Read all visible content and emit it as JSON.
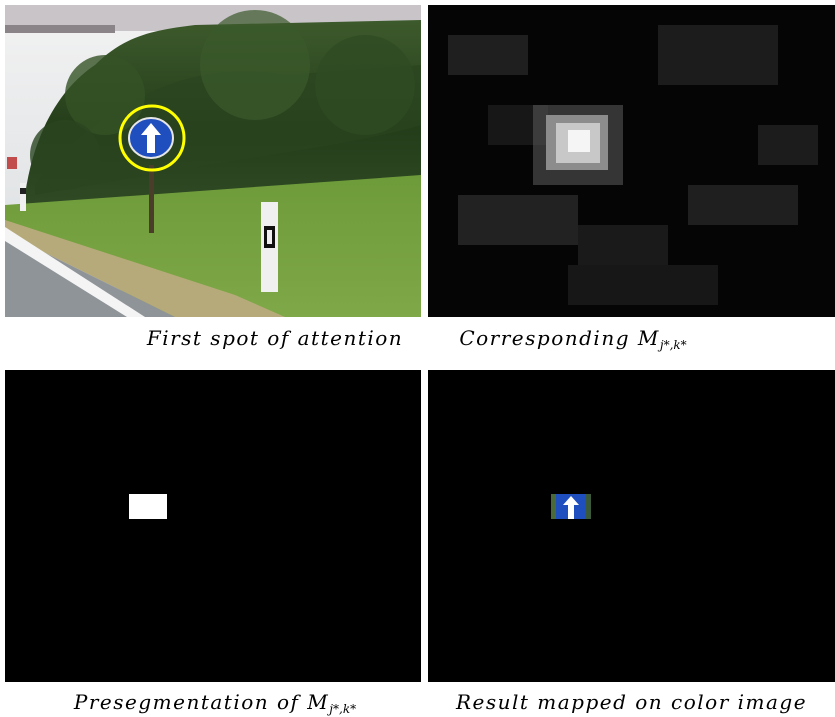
{
  "panels": [
    {
      "caption": "First spot of attention"
    },
    {
      "caption_main": "Corresponding M",
      "caption_sub": "j*,k*"
    },
    {
      "caption_main": "Presegmentation of M",
      "caption_sub": "j*,k*"
    },
    {
      "caption": "Result mapped on color image"
    }
  ],
  "colors": {
    "highlight_circle": "#ffff00",
    "sign_blue": "#1f4fbf",
    "foliage": "#2d4a22",
    "grass": "#6f9a3c"
  },
  "icons": [
    "arrow-up-icon"
  ]
}
